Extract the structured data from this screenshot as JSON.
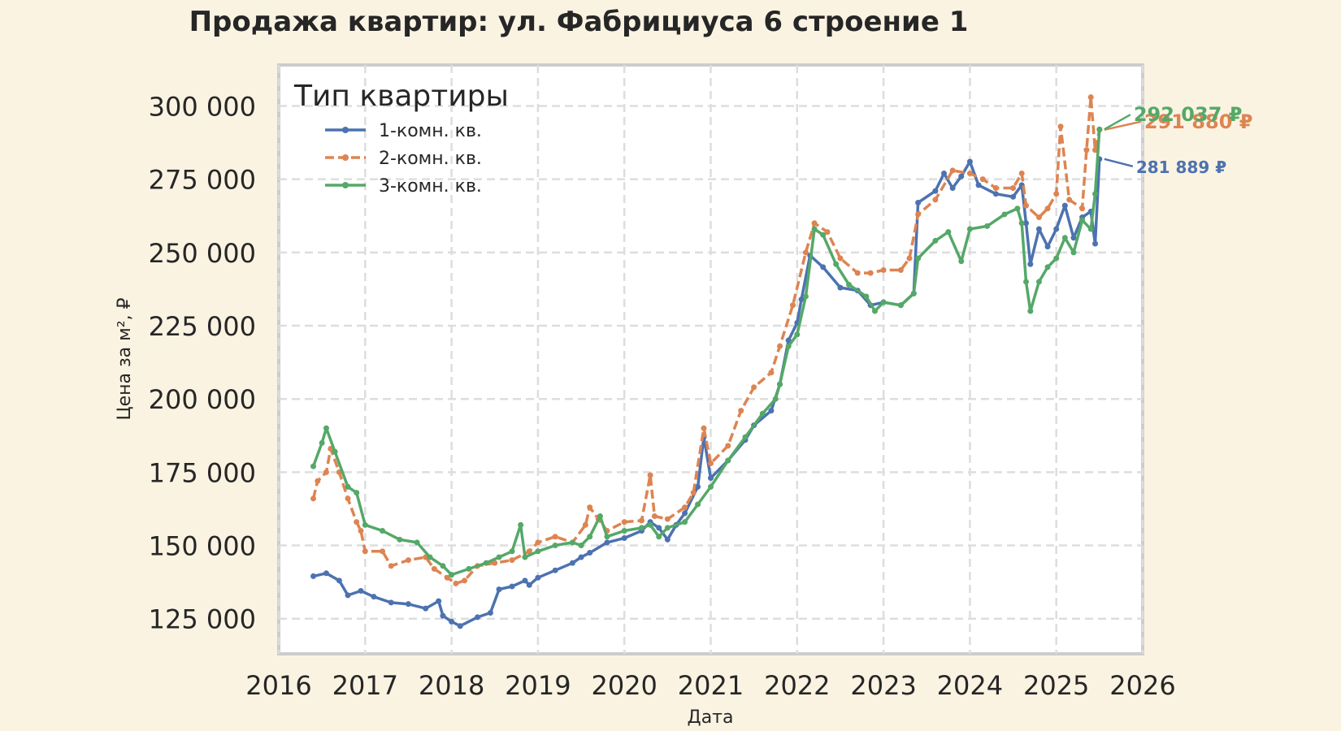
{
  "chart_data": {
    "type": "line",
    "title": "Продажа квартир: ул. Фабрициуса 6 строение 1",
    "xlabel": "Дата",
    "ylabel": "Цена за м², ₽",
    "xlim": [
      2016,
      2026
    ],
    "ylim": [
      113000,
      314000
    ],
    "x_ticks": [
      "2016",
      "2017",
      "2018",
      "2019",
      "2020",
      "2021",
      "2022",
      "2023",
      "2024",
      "2025",
      "2026"
    ],
    "y_ticks": [
      "125 000",
      "150 000",
      "175 000",
      "200 000",
      "225 000",
      "250 000",
      "275 000",
      "300 000"
    ],
    "y_tick_values": [
      125000,
      150000,
      175000,
      200000,
      225000,
      250000,
      275000,
      300000
    ],
    "grid": true,
    "legend": {
      "title": "Тип квартиры",
      "placement": "top-left"
    },
    "series": [
      {
        "name": "1-комн. кв.",
        "color": "#4c72b0",
        "dash": "solid",
        "marker": "triangle",
        "end_label": "281 889 ₽",
        "points": [
          [
            2016.4,
            139500
          ],
          [
            2016.55,
            140500
          ],
          [
            2016.7,
            138000
          ],
          [
            2016.8,
            133000
          ],
          [
            2016.95,
            134500
          ],
          [
            2017.1,
            132500
          ],
          [
            2017.3,
            130500
          ],
          [
            2017.5,
            130000
          ],
          [
            2017.7,
            128500
          ],
          [
            2017.85,
            131000
          ],
          [
            2017.9,
            126000
          ],
          [
            2018.0,
            124000
          ],
          [
            2018.1,
            122500
          ],
          [
            2018.3,
            125500
          ],
          [
            2018.45,
            127000
          ],
          [
            2018.55,
            135000
          ],
          [
            2018.7,
            136000
          ],
          [
            2018.85,
            138000
          ],
          [
            2018.9,
            136500
          ],
          [
            2019.0,
            139000
          ],
          [
            2019.2,
            141500
          ],
          [
            2019.4,
            144000
          ],
          [
            2019.5,
            146000
          ],
          [
            2019.6,
            147500
          ],
          [
            2019.8,
            151000
          ],
          [
            2020.0,
            152500
          ],
          [
            2020.2,
            155000
          ],
          [
            2020.3,
            158000
          ],
          [
            2020.4,
            156000
          ],
          [
            2020.5,
            152000
          ],
          [
            2020.6,
            157000
          ],
          [
            2020.7,
            161000
          ],
          [
            2020.85,
            170000
          ],
          [
            2020.92,
            187000
          ],
          [
            2021.0,
            173000
          ],
          [
            2021.2,
            179000
          ],
          [
            2021.4,
            186000
          ],
          [
            2021.5,
            191000
          ],
          [
            2021.7,
            196000
          ],
          [
            2021.8,
            205000
          ],
          [
            2021.9,
            220000
          ],
          [
            2022.0,
            226000
          ],
          [
            2022.05,
            234000
          ],
          [
            2022.15,
            249000
          ],
          [
            2022.3,
            245000
          ],
          [
            2022.5,
            238000
          ],
          [
            2022.7,
            237000
          ],
          [
            2022.85,
            232000
          ],
          [
            2023.0,
            233000
          ],
          [
            2023.2,
            232000
          ],
          [
            2023.35,
            236000
          ],
          [
            2023.4,
            267000
          ],
          [
            2023.6,
            271000
          ],
          [
            2023.7,
            277000
          ],
          [
            2023.8,
            272000
          ],
          [
            2023.9,
            276000
          ],
          [
            2024.0,
            281000
          ],
          [
            2024.1,
            273000
          ],
          [
            2024.3,
            270000
          ],
          [
            2024.5,
            269000
          ],
          [
            2024.6,
            273000
          ],
          [
            2024.65,
            260000
          ],
          [
            2024.7,
            246000
          ],
          [
            2024.8,
            258000
          ],
          [
            2024.9,
            252000
          ],
          [
            2025.0,
            258000
          ],
          [
            2025.1,
            266000
          ],
          [
            2025.2,
            255000
          ],
          [
            2025.3,
            262000
          ],
          [
            2025.4,
            264000
          ],
          [
            2025.45,
            253000
          ],
          [
            2025.5,
            281889
          ]
        ]
      },
      {
        "name": "2-комн. кв.",
        "color": "#dd8452",
        "dash": "dashed",
        "marker": "pentagon",
        "end_label": "291 880 ₽",
        "points": [
          [
            2016.4,
            166000
          ],
          [
            2016.45,
            172000
          ],
          [
            2016.55,
            175000
          ],
          [
            2016.6,
            183000
          ],
          [
            2016.7,
            175000
          ],
          [
            2016.8,
            166000
          ],
          [
            2016.9,
            158000
          ],
          [
            2016.95,
            155000
          ],
          [
            2017.0,
            148000
          ],
          [
            2017.2,
            148000
          ],
          [
            2017.3,
            143000
          ],
          [
            2017.5,
            145000
          ],
          [
            2017.7,
            146000
          ],
          [
            2017.8,
            142000
          ],
          [
            2017.95,
            139000
          ],
          [
            2018.05,
            137000
          ],
          [
            2018.15,
            138000
          ],
          [
            2018.3,
            143000
          ],
          [
            2018.5,
            144000
          ],
          [
            2018.7,
            145000
          ],
          [
            2018.9,
            148000
          ],
          [
            2019.0,
            151000
          ],
          [
            2019.2,
            153000
          ],
          [
            2019.4,
            151000
          ],
          [
            2019.55,
            157000
          ],
          [
            2019.6,
            163000
          ],
          [
            2019.7,
            159000
          ],
          [
            2019.8,
            155000
          ],
          [
            2020.0,
            158000
          ],
          [
            2020.2,
            158500
          ],
          [
            2020.3,
            174000
          ],
          [
            2020.35,
            160000
          ],
          [
            2020.5,
            159000
          ],
          [
            2020.7,
            163000
          ],
          [
            2020.8,
            168000
          ],
          [
            2020.92,
            190000
          ],
          [
            2021.0,
            178000
          ],
          [
            2021.2,
            184000
          ],
          [
            2021.35,
            196000
          ],
          [
            2021.5,
            204000
          ],
          [
            2021.7,
            209000
          ],
          [
            2021.8,
            218000
          ],
          [
            2021.95,
            232000
          ],
          [
            2022.1,
            250000
          ],
          [
            2022.2,
            260000
          ],
          [
            2022.35,
            257000
          ],
          [
            2022.5,
            248000
          ],
          [
            2022.7,
            243000
          ],
          [
            2022.85,
            243000
          ],
          [
            2023.0,
            244000
          ],
          [
            2023.2,
            244000
          ],
          [
            2023.3,
            248000
          ],
          [
            2023.4,
            263000
          ],
          [
            2023.6,
            268000
          ],
          [
            2023.8,
            278000
          ],
          [
            2024.0,
            277000
          ],
          [
            2024.15,
            275000
          ],
          [
            2024.3,
            272000
          ],
          [
            2024.5,
            272000
          ],
          [
            2024.6,
            277000
          ],
          [
            2024.65,
            266000
          ],
          [
            2024.8,
            262000
          ],
          [
            2024.9,
            265000
          ],
          [
            2025.0,
            270000
          ],
          [
            2025.05,
            293000
          ],
          [
            2025.15,
            268000
          ],
          [
            2025.3,
            265000
          ],
          [
            2025.35,
            285000
          ],
          [
            2025.4,
            303000
          ],
          [
            2025.45,
            285000
          ],
          [
            2025.5,
            291880
          ]
        ]
      },
      {
        "name": "3-комн. кв.",
        "color": "#55a868",
        "dash": "solid",
        "marker": "left-triangle",
        "end_label": "292 037 ₽",
        "points": [
          [
            2016.4,
            177000
          ],
          [
            2016.5,
            185000
          ],
          [
            2016.55,
            190000
          ],
          [
            2016.65,
            182000
          ],
          [
            2016.8,
            170000
          ],
          [
            2016.9,
            168000
          ],
          [
            2017.0,
            157000
          ],
          [
            2017.2,
            155000
          ],
          [
            2017.4,
            152000
          ],
          [
            2017.6,
            151000
          ],
          [
            2017.75,
            146000
          ],
          [
            2017.9,
            143000
          ],
          [
            2018.0,
            140000
          ],
          [
            2018.2,
            142000
          ],
          [
            2018.4,
            144000
          ],
          [
            2018.55,
            146000
          ],
          [
            2018.7,
            148000
          ],
          [
            2018.8,
            157000
          ],
          [
            2018.85,
            146000
          ],
          [
            2019.0,
            148000
          ],
          [
            2019.2,
            150000
          ],
          [
            2019.4,
            151000
          ],
          [
            2019.5,
            150000
          ],
          [
            2019.6,
            153000
          ],
          [
            2019.72,
            160000
          ],
          [
            2019.8,
            153000
          ],
          [
            2020.0,
            155000
          ],
          [
            2020.2,
            156000
          ],
          [
            2020.3,
            157000
          ],
          [
            2020.4,
            153000
          ],
          [
            2020.5,
            156000
          ],
          [
            2020.7,
            158000
          ],
          [
            2020.85,
            164000
          ],
          [
            2021.0,
            170000
          ],
          [
            2021.2,
            179000
          ],
          [
            2021.4,
            187000
          ],
          [
            2021.6,
            195000
          ],
          [
            2021.75,
            200000
          ],
          [
            2021.8,
            205000
          ],
          [
            2021.9,
            218000
          ],
          [
            2022.0,
            222000
          ],
          [
            2022.1,
            235000
          ],
          [
            2022.2,
            258000
          ],
          [
            2022.3,
            256000
          ],
          [
            2022.45,
            246000
          ],
          [
            2022.6,
            239000
          ],
          [
            2022.8,
            235000
          ],
          [
            2022.9,
            230000
          ],
          [
            2023.0,
            233000
          ],
          [
            2023.2,
            232000
          ],
          [
            2023.35,
            236000
          ],
          [
            2023.4,
            248000
          ],
          [
            2023.6,
            254000
          ],
          [
            2023.75,
            257000
          ],
          [
            2023.9,
            247000
          ],
          [
            2024.0,
            258000
          ],
          [
            2024.2,
            259000
          ],
          [
            2024.4,
            263000
          ],
          [
            2024.55,
            265000
          ],
          [
            2024.6,
            260000
          ],
          [
            2024.65,
            240000
          ],
          [
            2024.7,
            230000
          ],
          [
            2024.8,
            240000
          ],
          [
            2024.9,
            245000
          ],
          [
            2025.0,
            248000
          ],
          [
            2025.1,
            255000
          ],
          [
            2025.2,
            250000
          ],
          [
            2025.3,
            261000
          ],
          [
            2025.4,
            258000
          ],
          [
            2025.45,
            270000
          ],
          [
            2025.5,
            292037
          ]
        ]
      }
    ]
  }
}
